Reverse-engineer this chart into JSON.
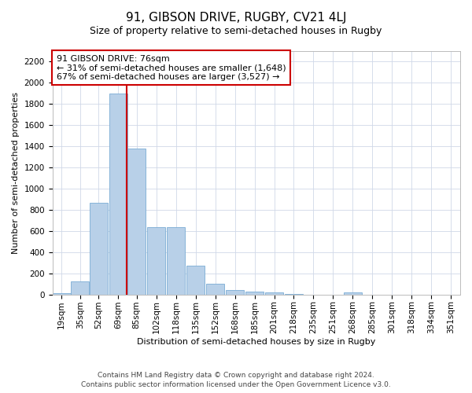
{
  "title": "91, GIBSON DRIVE, RUGBY, CV21 4LJ",
  "subtitle": "Size of property relative to semi-detached houses in Rugby",
  "xlabel": "Distribution of semi-detached houses by size in Rugby",
  "ylabel": "Number of semi-detached properties",
  "footnote1": "Contains HM Land Registry data © Crown copyright and database right 2024.",
  "footnote2": "Contains public sector information licensed under the Open Government Licence v3.0.",
  "annotation_line1": "91 GIBSON DRIVE: 76sqm",
  "annotation_line2": "← 31% of semi-detached houses are smaller (1,648)",
  "annotation_line3": "67% of semi-detached houses are larger (3,527) →",
  "property_size": 76,
  "property_bin_index": 3,
  "bar_color": "#b8d0e8",
  "bar_edge_color": "#7aacd4",
  "vline_color": "#cc0000",
  "annotation_box_edge": "#cc0000",
  "background_color": "#ffffff",
  "grid_color": "#d0d8e8",
  "categories": [
    "19sqm",
    "35sqm",
    "52sqm",
    "69sqm",
    "85sqm",
    "102sqm",
    "118sqm",
    "135sqm",
    "152sqm",
    "168sqm",
    "185sqm",
    "201sqm",
    "218sqm",
    "235sqm",
    "251sqm",
    "268sqm",
    "285sqm",
    "301sqm",
    "318sqm",
    "334sqm",
    "351sqm"
  ],
  "bin_left_edges": [
    11.5,
    27.5,
    43.5,
    60.5,
    76.5,
    93.5,
    110.5,
    127.5,
    144.5,
    161.5,
    178.5,
    195.5,
    212.5,
    229.5,
    246.5,
    263.5,
    280.5,
    297.5,
    314.5,
    331.5,
    348.5
  ],
  "bin_width": 16,
  "values": [
    10,
    125,
    870,
    1900,
    1380,
    640,
    640,
    275,
    100,
    45,
    30,
    20,
    5,
    0,
    0,
    20,
    0,
    0,
    0,
    0,
    0
  ],
  "ylim": [
    0,
    2300
  ],
  "yticks": [
    0,
    200,
    400,
    600,
    800,
    1000,
    1200,
    1400,
    1600,
    1800,
    2000,
    2200
  ],
  "title_fontsize": 11,
  "subtitle_fontsize": 9,
  "annotation_fontsize": 8,
  "axis_label_fontsize": 8,
  "tick_fontsize": 7.5,
  "footnote_fontsize": 6.5
}
